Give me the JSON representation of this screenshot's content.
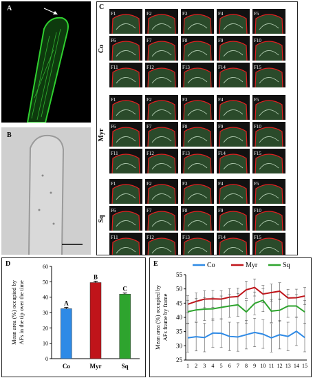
{
  "panels": {
    "a": {
      "label": "A"
    },
    "b": {
      "label": "B"
    },
    "c": {
      "label": "C",
      "groups": [
        {
          "name": "Co",
          "frames": [
            "F1",
            "F2",
            "F3",
            "F4",
            "F5",
            "F6",
            "F7",
            "F8",
            "F9",
            "F10",
            "F11",
            "F12",
            "F13",
            "F14",
            "F15"
          ]
        },
        {
          "name": "Myr",
          "frames": [
            "F1",
            "F2",
            "F3",
            "F4",
            "F5",
            "F6",
            "F7",
            "F8",
            "F9",
            "F10",
            "F11",
            "F12",
            "F13",
            "F14",
            "F15"
          ]
        },
        {
          "name": "Sq",
          "frames": [
            "F1",
            "F2",
            "F3",
            "F4",
            "F5",
            "F6",
            "F7",
            "F8",
            "F9",
            "F10",
            "F11",
            "F12",
            "F13",
            "F14",
            "F15"
          ]
        }
      ]
    },
    "d": {
      "label": "D"
    },
    "e": {
      "label": "E"
    }
  },
  "chart_data": [
    {
      "type": "bar",
      "panel": "D",
      "categories": [
        "Co",
        "Myr",
        "Sq"
      ],
      "values": [
        32.5,
        49.5,
        42
      ],
      "errors": [
        0.8,
        0.9,
        0.7
      ],
      "letters": [
        "A",
        "B",
        "C"
      ],
      "colors": [
        "#2e8ae6",
        "#c0141a",
        "#2ea42e"
      ],
      "ylabel_lines": [
        "Mean area (%) occupied by",
        "AFs in the tip over the time"
      ],
      "ylim": [
        0,
        60
      ],
      "yticks": [
        0,
        10,
        20,
        30,
        40,
        50,
        60
      ]
    },
    {
      "type": "line",
      "panel": "E",
      "x": [
        1,
        2,
        3,
        4,
        5,
        6,
        7,
        8,
        9,
        10,
        11,
        12,
        13,
        14,
        15
      ],
      "series": [
        {
          "name": "Co",
          "color": "#2e8ae6",
          "values": [
            32.8,
            33.2,
            32.9,
            34.5,
            34.4,
            33.3,
            33.1,
            33.9,
            34.7,
            34.1,
            32.8,
            33.9,
            33.3,
            35.1,
            32.9
          ],
          "errors": [
            5,
            5,
            5,
            5,
            5,
            5,
            5,
            5,
            5,
            5,
            5,
            5,
            5,
            5,
            5
          ]
        },
        {
          "name": "Myr",
          "color": "#c0141a",
          "values": [
            44.6,
            45.6,
            46.4,
            46.5,
            46.4,
            47.1,
            47.3,
            49.7,
            50.5,
            48.2,
            48.7,
            49.2,
            46.8,
            46.9,
            47.5
          ],
          "errors": [
            3,
            3,
            3,
            3,
            3,
            3,
            3,
            3,
            3,
            3,
            3,
            3,
            3,
            3,
            3
          ]
        },
        {
          "name": "Sq",
          "color": "#2ea42e",
          "values": [
            42.0,
            42.6,
            42.9,
            43.0,
            43.5,
            44.0,
            44.4,
            41.9,
            44.9,
            46.0,
            42.2,
            42.5,
            44.0,
            44.0,
            41.9
          ],
          "errors": [
            4,
            4,
            4,
            4,
            4,
            4,
            4,
            4,
            4,
            4,
            4,
            4,
            4,
            4,
            4
          ]
        }
      ],
      "ylabel_lines": [
        "Mean area (%) occupied by",
        "AFs frame by frame"
      ],
      "ylim": [
        25,
        55
      ],
      "yticks": [
        25,
        30,
        35,
        40,
        45,
        50,
        55
      ],
      "legend_position": "top"
    }
  ]
}
